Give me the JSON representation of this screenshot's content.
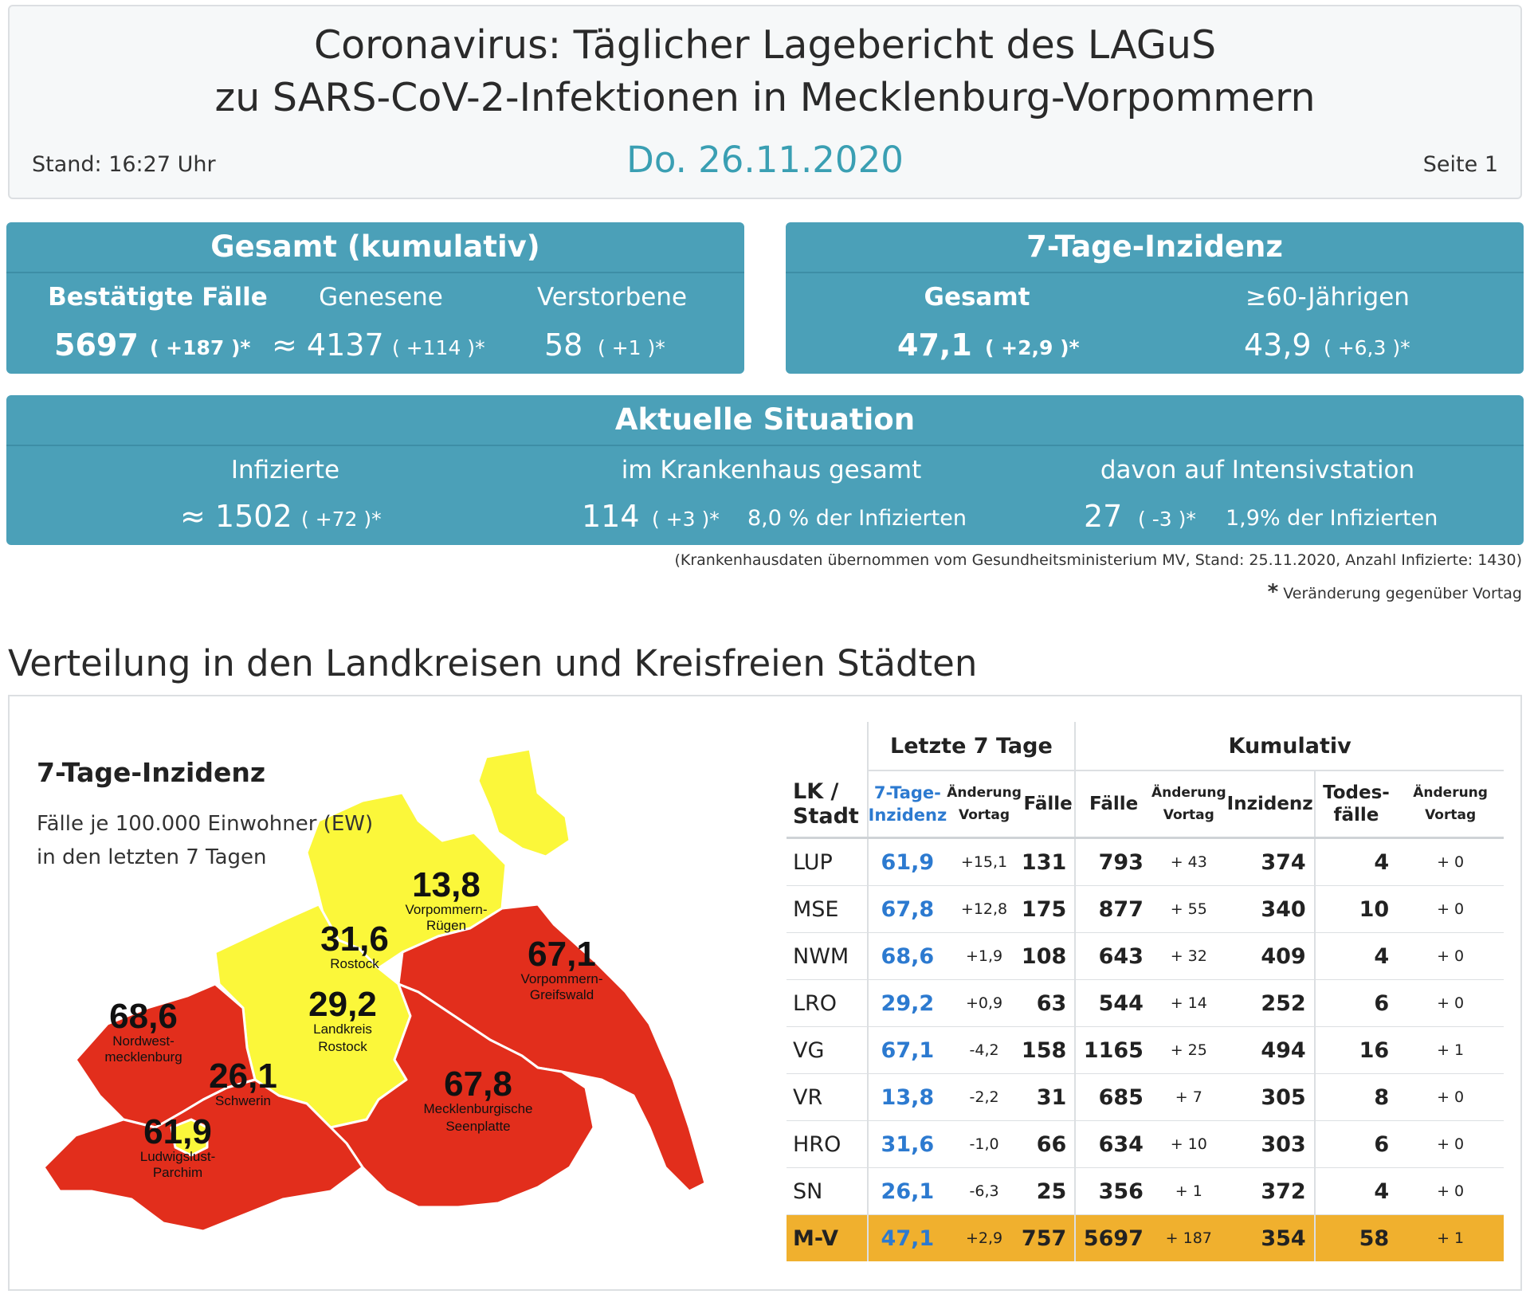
{
  "header": {
    "title_line1": "Coronavirus: Täglicher Lagebericht des LAGuS",
    "title_line2": "zu SARS-CoV-2-Infektionen in Mecklenburg-Vorpommern",
    "date": "Do. 26.11.2020",
    "stand": "Stand: 16:27 Uhr",
    "seite": "Seite 1"
  },
  "gesamt": {
    "title": "Gesamt (kumulativ)",
    "confirmed_label": "Bestätigte Fälle",
    "confirmed_value": "5697",
    "confirmed_change": "( +187 )*",
    "recovered_label": "Genesene",
    "recovered_value": "≈ 4137",
    "recovered_change": "( +114 )*",
    "deceased_label": "Verstorbene",
    "deceased_value": "58",
    "deceased_change": "( +1 )*"
  },
  "inzidenz": {
    "title": "7-Tage-Inzidenz",
    "total_label": "Gesamt",
    "total_value": "47,1",
    "total_change": "( +2,9 )*",
    "senior_label": "≥60-Jährigen",
    "senior_value": "43,9",
    "senior_change": "( +6,3 )*"
  },
  "aktuell": {
    "title": "Aktuelle Situation",
    "infected_label": "Infizierte",
    "infected_value": "≈ 1502",
    "infected_change": "( +72 )*",
    "hospital_label": "im Krankenhaus gesamt",
    "hospital_value": "114",
    "hospital_change": "( +3 )*",
    "hospital_pct": "8,0 % der Infizierten",
    "icu_label": "davon auf Intensivstation",
    "icu_value": "27",
    "icu_change": "( -3 )*",
    "icu_pct": "1,9% der Infizierten"
  },
  "footnotes": {
    "hospital_source": "(Krankenhausdaten übernommen vom Gesundheitsministerium MV, Stand: 25.11.2020, Anzahl Infizierte: 1430)",
    "asterisk": "*",
    "asterisk_text": "Veränderung gegenüber Vortag"
  },
  "section_title": "Verteilung in den Landkreisen und Kreisfreien Städten",
  "map": {
    "title": "7-Tage-Inzidenz",
    "subtitle_line1": "Fälle je 100.000 Einwohner (EW)",
    "subtitle_line2": "in den letzten 7 Tagen",
    "colors": {
      "high": "#e22e1c",
      "low": "#fbf73a",
      "outline": "#ffffff"
    },
    "regions": [
      {
        "value": "13,8",
        "name1": "Vorpommern-",
        "name2": "Rügen"
      },
      {
        "value": "31,6",
        "name1": "Rostock",
        "name2": ""
      },
      {
        "value": "29,2",
        "name1": "Landkreis",
        "name2": "Rostock"
      },
      {
        "value": "67,1",
        "name1": "Vorpommern-",
        "name2": "Greifswald"
      },
      {
        "value": "68,6",
        "name1": "Nordwest-",
        "name2": "mecklenburg"
      },
      {
        "value": "26,1",
        "name1": "Schwerin",
        "name2": ""
      },
      {
        "value": "67,8",
        "name1": "Mecklenburgische",
        "name2": "Seenplatte"
      },
      {
        "value": "61,9",
        "name1": "Ludwigslust-",
        "name2": "Parchim"
      }
    ]
  },
  "table": {
    "group_7": "Letzte 7 Tage",
    "group_cum": "Kumulativ",
    "col_lk": "LK /",
    "col_stadt": "Stadt",
    "col_inz1": "7-Tage-",
    "col_inz2": "Inzidenz",
    "col_aend1": "Änderung",
    "col_aend2": "Vortag",
    "col_faelle7": "Fälle",
    "col_faelle": "Fälle",
    "col_inzidenz": "Inzidenz",
    "col_todes1": "Todes-",
    "col_todes2": "fälle",
    "rows": [
      {
        "name": "LUP",
        "inz": "61,9",
        "inz_chg": "+15,1",
        "f7": "131",
        "f": "793",
        "f_chg": "+ 43",
        "inzc": "374",
        "tod": "4",
        "tod_chg": "+ 0"
      },
      {
        "name": "MSE",
        "inz": "67,8",
        "inz_chg": "+12,8",
        "f7": "175",
        "f": "877",
        "f_chg": "+ 55",
        "inzc": "340",
        "tod": "10",
        "tod_chg": "+ 0"
      },
      {
        "name": "NWM",
        "inz": "68,6",
        "inz_chg": "+1,9",
        "f7": "108",
        "f": "643",
        "f_chg": "+ 32",
        "inzc": "409",
        "tod": "4",
        "tod_chg": "+ 0"
      },
      {
        "name": "LRO",
        "inz": "29,2",
        "inz_chg": "+0,9",
        "f7": "63",
        "f": "544",
        "f_chg": "+ 14",
        "inzc": "252",
        "tod": "6",
        "tod_chg": "+ 0"
      },
      {
        "name": "VG",
        "inz": "67,1",
        "inz_chg": "-4,2",
        "f7": "158",
        "f": "1165",
        "f_chg": "+ 25",
        "inzc": "494",
        "tod": "16",
        "tod_chg": "+ 1"
      },
      {
        "name": "VR",
        "inz": "13,8",
        "inz_chg": "-2,2",
        "f7": "31",
        "f": "685",
        "f_chg": "+ 7",
        "inzc": "305",
        "tod": "8",
        "tod_chg": "+ 0"
      },
      {
        "name": "HRO",
        "inz": "31,6",
        "inz_chg": "-1,0",
        "f7": "66",
        "f": "634",
        "f_chg": "+ 10",
        "inzc": "303",
        "tod": "6",
        "tod_chg": "+ 0"
      },
      {
        "name": "SN",
        "inz": "26,1",
        "inz_chg": "-6,3",
        "f7": "25",
        "f": "356",
        "f_chg": "+ 1",
        "inzc": "372",
        "tod": "4",
        "tod_chg": "+ 0"
      }
    ],
    "total": {
      "name": "M-V",
      "inz": "47,1",
      "inz_chg": "+2,9",
      "f7": "757",
      "f": "5697",
      "f_chg": "+ 187",
      "inzc": "354",
      "tod": "58",
      "tod_chg": "+ 1"
    }
  }
}
